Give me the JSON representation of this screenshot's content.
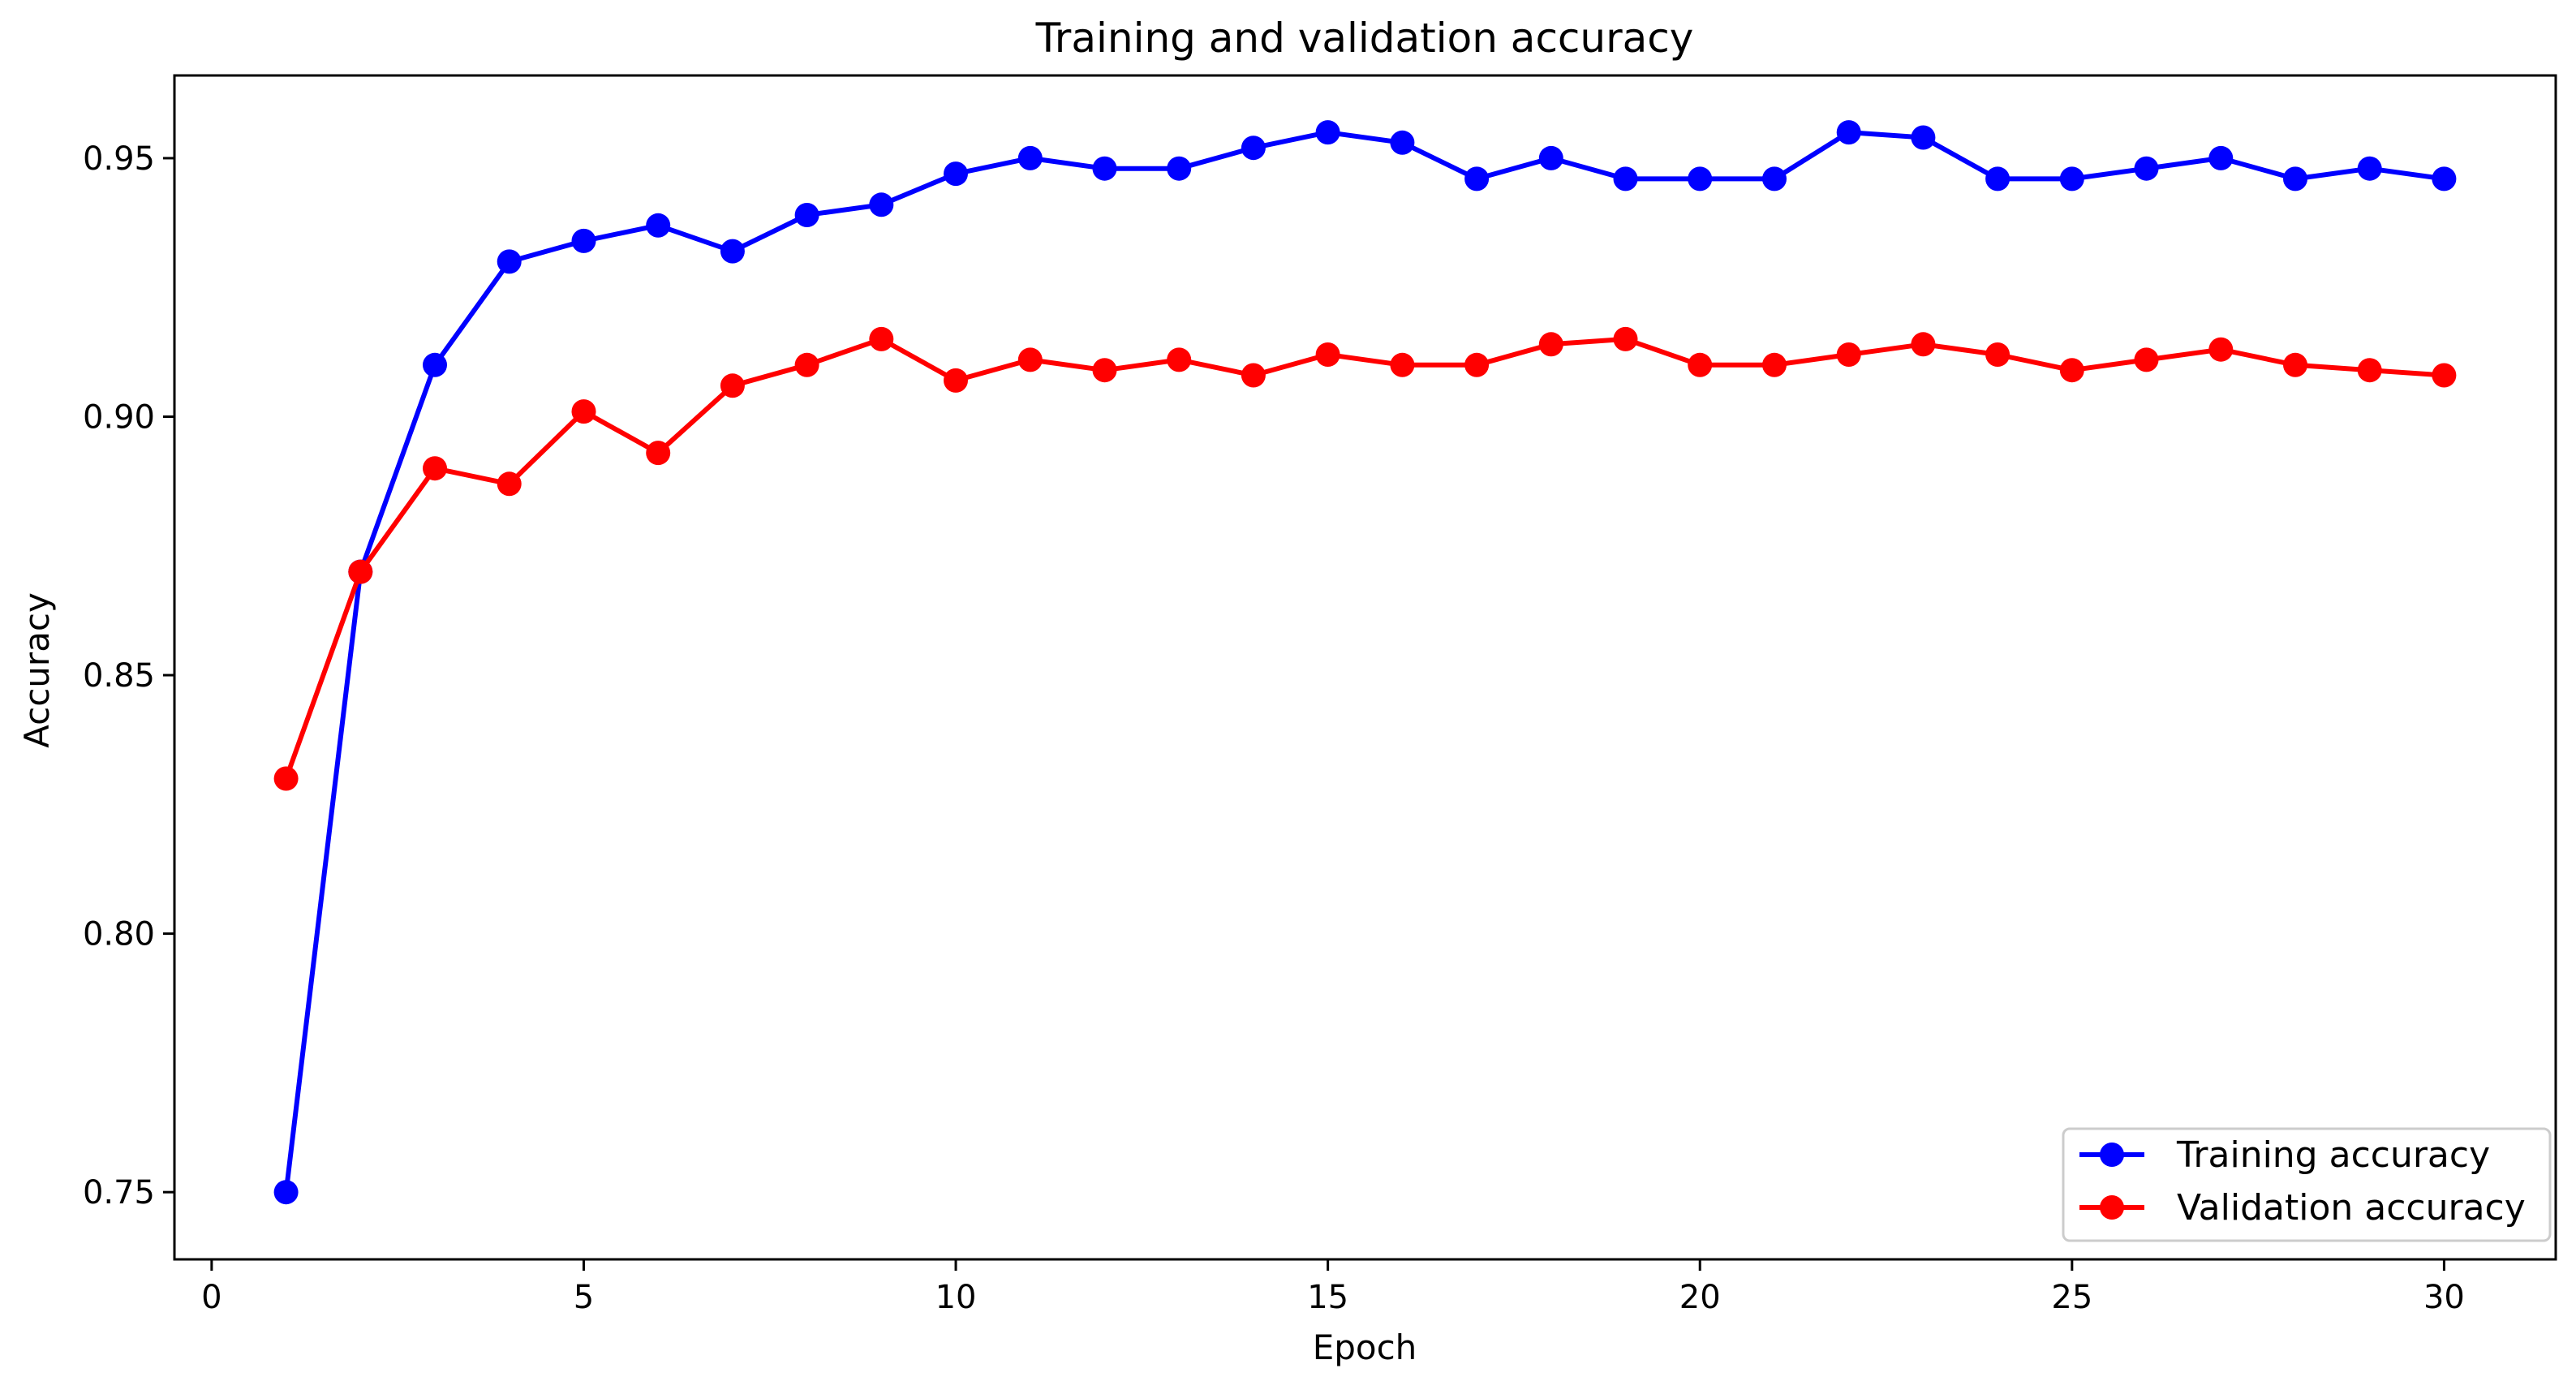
{
  "chart_data": {
    "type": "line",
    "title": "Training and validation accuracy",
    "xlabel": "Epoch",
    "ylabel": "Accuracy",
    "xlim": [
      -0.5,
      31.5
    ],
    "ylim": [
      0.737,
      0.966
    ],
    "xticks": [
      0,
      5,
      10,
      15,
      20,
      25,
      30
    ],
    "xtick_labels": [
      "0",
      "5",
      "10",
      "15",
      "20",
      "25",
      "30"
    ],
    "yticks": [
      0.75,
      0.8,
      0.85,
      0.9,
      0.95
    ],
    "ytick_labels": [
      "0.75",
      "0.80",
      "0.85",
      "0.90",
      "0.95"
    ],
    "grid": false,
    "legend_position": "bottom-right",
    "x": [
      1,
      2,
      3,
      4,
      5,
      6,
      7,
      8,
      9,
      10,
      11,
      12,
      13,
      14,
      15,
      16,
      17,
      18,
      19,
      20,
      21,
      22,
      23,
      24,
      25,
      26,
      27,
      28,
      29,
      30
    ],
    "series": [
      {
        "name": "Training accuracy",
        "color": "#0000ff",
        "marker": "circle",
        "values": [
          0.75,
          0.87,
          0.91,
          0.93,
          0.934,
          0.937,
          0.932,
          0.939,
          0.941,
          0.947,
          0.95,
          0.948,
          0.948,
          0.952,
          0.955,
          0.953,
          0.946,
          0.95,
          0.946,
          0.946,
          0.946,
          0.955,
          0.954,
          0.946,
          0.946,
          0.948,
          0.95,
          0.946,
          0.948,
          0.946
        ]
      },
      {
        "name": "Validation accuracy",
        "color": "#ff0000",
        "marker": "circle",
        "values": [
          0.83,
          0.87,
          0.89,
          0.887,
          0.901,
          0.893,
          0.906,
          0.91,
          0.915,
          0.907,
          0.911,
          0.909,
          0.911,
          0.908,
          0.912,
          0.91,
          0.91,
          0.914,
          0.915,
          0.91,
          0.91,
          0.912,
          0.914,
          0.912,
          0.909,
          0.911,
          0.913,
          0.91,
          0.909,
          0.908
        ]
      }
    ]
  }
}
